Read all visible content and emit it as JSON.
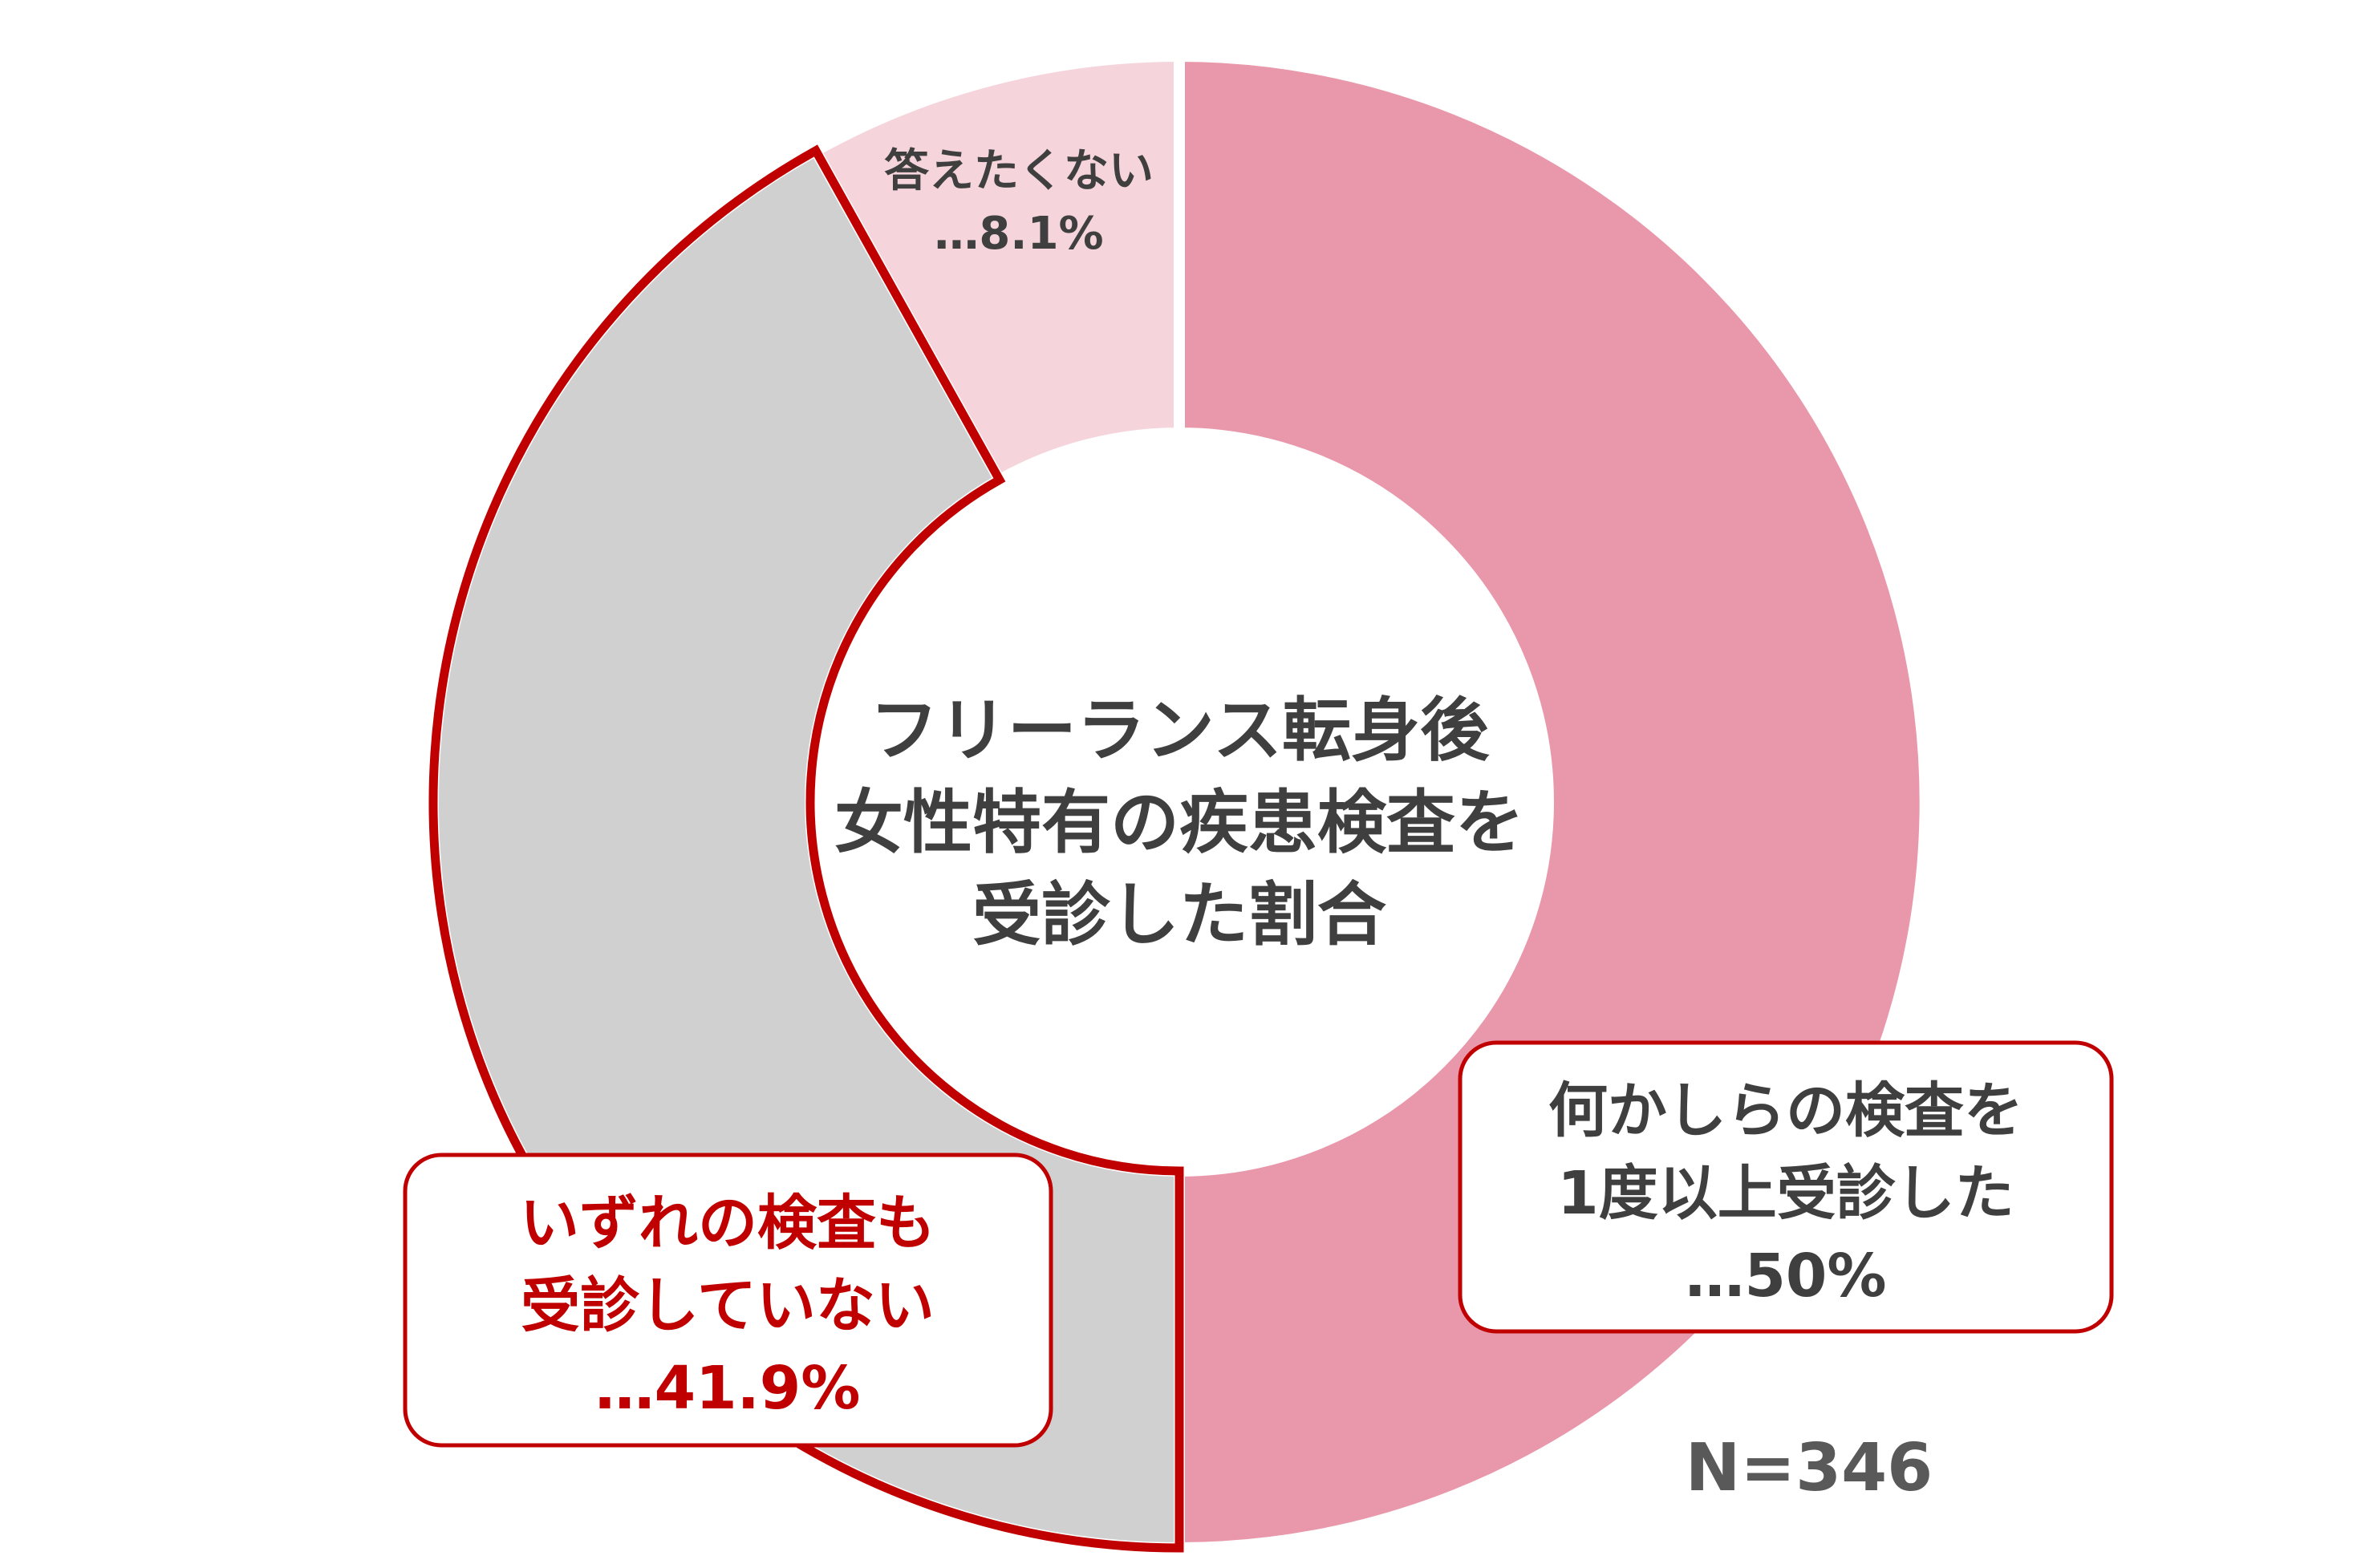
{
  "chart_data": {
    "type": "pie",
    "subtype": "donut",
    "title_lines": [
      "フリーランス転身後",
      "女性特有の疾患検査を",
      "受診した割合"
    ],
    "sample_size": "N=346",
    "slices": [
      {
        "label_lines": [
          "何かしらの検査を",
          "1度以上受診した",
          "…50%"
        ],
        "value": 50,
        "color": "#e997aa",
        "label_color": "#3f3f3f"
      },
      {
        "label_lines": [
          "いずれの検査も",
          "受診していない",
          "…41.9%"
        ],
        "value": 41.9,
        "color": "#d0d0d0",
        "label_color": "#c00000",
        "highlight": true,
        "outline_color": "#c00000"
      },
      {
        "label_lines": [
          "答えたくない",
          "…8.1%"
        ],
        "value": 8.1,
        "color": "#f5d4dc",
        "label_color": "#3f3f3f"
      }
    ]
  }
}
